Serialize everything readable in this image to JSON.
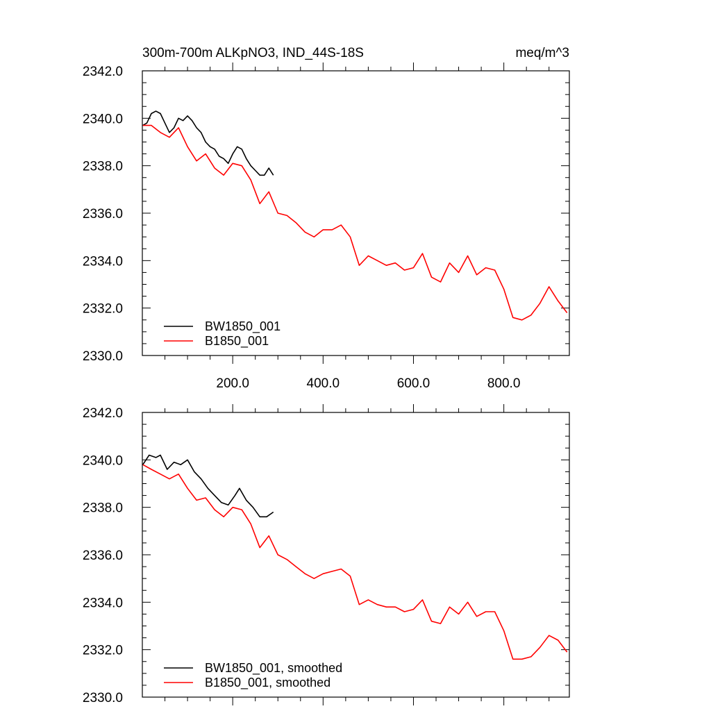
{
  "chart_data": [
    {
      "type": "line",
      "title": "300m-700m ALKpNO3, IND_44S-18S",
      "units": "meq/m^3",
      "xlim": [
        0,
        945
      ],
      "ylim": [
        2330,
        2342
      ],
      "xticks": [
        200,
        400,
        600,
        800
      ],
      "xtick_labels": [
        "200.0",
        "400.0",
        "600.0",
        "800.0"
      ],
      "yticks": [
        2330,
        2332,
        2334,
        2336,
        2338,
        2340,
        2342
      ],
      "ytick_labels": [
        "2330.0",
        "2332.0",
        "2334.0",
        "2336.0",
        "2338.0",
        "2340.0",
        "2342.0"
      ],
      "legend_position": "bottom-left",
      "series": [
        {
          "name": "BW1850_001",
          "color": "#000000",
          "x": [
            1,
            10,
            20,
            30,
            40,
            50,
            60,
            70,
            80,
            90,
            100,
            110,
            120,
            130,
            140,
            150,
            160,
            170,
            180,
            190,
            200,
            210,
            220,
            230,
            240,
            250,
            260,
            270,
            280,
            290
          ],
          "y": [
            2339.7,
            2339.8,
            2340.2,
            2340.3,
            2340.2,
            2339.8,
            2339.4,
            2339.6,
            2340.0,
            2339.9,
            2340.1,
            2339.9,
            2339.6,
            2339.4,
            2339.0,
            2338.8,
            2338.7,
            2338.4,
            2338.3,
            2338.1,
            2338.5,
            2338.8,
            2338.7,
            2338.3,
            2338.0,
            2337.8,
            2337.6,
            2337.6,
            2337.9,
            2337.6
          ]
        },
        {
          "name": "B1850_001",
          "color": "#ff0000",
          "x": [
            1,
            20,
            40,
            60,
            80,
            100,
            120,
            140,
            160,
            180,
            200,
            220,
            240,
            260,
            280,
            300,
            320,
            340,
            360,
            380,
            400,
            420,
            440,
            460,
            480,
            500,
            520,
            540,
            560,
            580,
            600,
            620,
            640,
            660,
            680,
            700,
            720,
            740,
            760,
            780,
            800,
            820,
            840,
            860,
            880,
            900,
            920,
            940
          ],
          "y": [
            2339.7,
            2339.7,
            2339.4,
            2339.2,
            2339.6,
            2338.8,
            2338.2,
            2338.5,
            2337.9,
            2337.6,
            2338.1,
            2338.0,
            2337.4,
            2336.4,
            2336.9,
            2336.0,
            2335.9,
            2335.6,
            2335.2,
            2335.0,
            2335.3,
            2335.3,
            2335.5,
            2335.0,
            2333.8,
            2334.2,
            2334.0,
            2333.8,
            2333.9,
            2333.6,
            2333.7,
            2334.3,
            2333.3,
            2333.1,
            2333.9,
            2333.5,
            2334.2,
            2333.4,
            2333.7,
            2333.6,
            2332.8,
            2331.6,
            2331.5,
            2331.7,
            2332.2,
            2332.9,
            2332.3,
            2331.8
          ]
        }
      ]
    },
    {
      "type": "line",
      "title": "",
      "units": "",
      "xlim": [
        0,
        945
      ],
      "ylim": [
        2330,
        2342
      ],
      "xticks": [
        200,
        400,
        600,
        800
      ],
      "xtick_labels": [],
      "yticks": [
        2330,
        2332,
        2334,
        2336,
        2338,
        2340,
        2342
      ],
      "ytick_labels": [
        "2330.0",
        "2332.0",
        "2334.0",
        "2336.0",
        "2338.0",
        "2340.0",
        "2342.0"
      ],
      "legend_position": "bottom-left",
      "series": [
        {
          "name": "BW1850_001, smoothed",
          "color": "#000000",
          "x": [
            1,
            15,
            30,
            40,
            55,
            70,
            85,
            100,
            115,
            130,
            145,
            160,
            175,
            190,
            205,
            215,
            230,
            245,
            260,
            275,
            290
          ],
          "y": [
            2339.8,
            2340.2,
            2340.1,
            2340.2,
            2339.6,
            2339.9,
            2339.8,
            2340.0,
            2339.5,
            2339.2,
            2338.8,
            2338.5,
            2338.2,
            2338.1,
            2338.5,
            2338.8,
            2338.3,
            2338.0,
            2337.6,
            2337.6,
            2337.8
          ]
        },
        {
          "name": "B1850_001, smoothed",
          "color": "#ff0000",
          "x": [
            1,
            20,
            40,
            60,
            80,
            100,
            120,
            140,
            160,
            180,
            200,
            220,
            240,
            260,
            280,
            300,
            320,
            340,
            360,
            380,
            400,
            420,
            440,
            460,
            480,
            500,
            520,
            540,
            560,
            580,
            600,
            620,
            640,
            660,
            680,
            700,
            720,
            740,
            760,
            780,
            800,
            820,
            840,
            860,
            880,
            900,
            920,
            940
          ],
          "y": [
            2339.8,
            2339.6,
            2339.4,
            2339.2,
            2339.4,
            2338.8,
            2338.3,
            2338.4,
            2337.9,
            2337.6,
            2338.0,
            2337.9,
            2337.3,
            2336.3,
            2336.8,
            2336.0,
            2335.8,
            2335.5,
            2335.2,
            2335.0,
            2335.2,
            2335.3,
            2335.4,
            2335.1,
            2333.9,
            2334.1,
            2333.9,
            2333.8,
            2333.8,
            2333.6,
            2333.7,
            2334.1,
            2333.2,
            2333.1,
            2333.8,
            2333.5,
            2334.0,
            2333.4,
            2333.6,
            2333.6,
            2332.8,
            2331.6,
            2331.6,
            2331.7,
            2332.1,
            2332.6,
            2332.4,
            2331.9
          ]
        }
      ]
    }
  ]
}
